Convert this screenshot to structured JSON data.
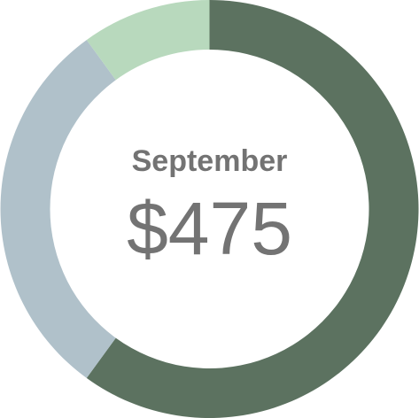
{
  "center": {
    "month": "September",
    "amount": "$475"
  },
  "chart_data": {
    "type": "pie",
    "variant": "donut",
    "start": "top",
    "direction": "clockwise",
    "slices": [
      {
        "value": 0.6,
        "color": "#5c7260"
      },
      {
        "value": 0.3,
        "color": "#b0c1ca"
      },
      {
        "value": 0.1,
        "color": "#b8d9bd"
      }
    ]
  }
}
